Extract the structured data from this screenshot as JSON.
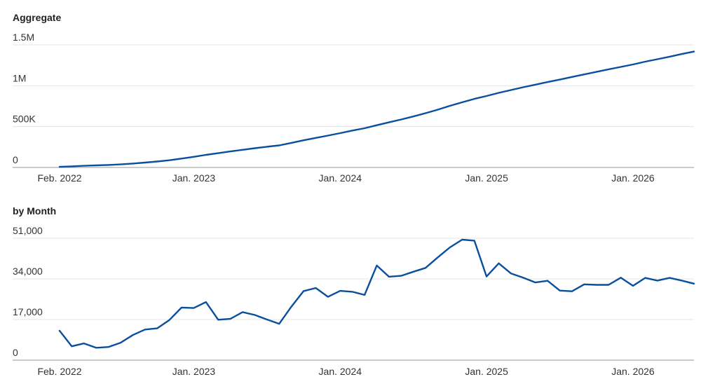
{
  "accent_color": "#0a4f9e",
  "chart_data": [
    {
      "type": "line",
      "title": "Aggregate",
      "x_start": "2022-02",
      "x_end": "2026-06",
      "xticks": [
        {
          "label": "Feb. 2022",
          "date": "2022-02"
        },
        {
          "label": "Jan. 2023",
          "date": "2023-01"
        },
        {
          "label": "Jan. 2024",
          "date": "2024-01"
        },
        {
          "label": "Jan. 2025",
          "date": "2025-01"
        },
        {
          "label": "Jan. 2026",
          "date": "2026-01"
        }
      ],
      "yticks": [
        {
          "label": "0",
          "value": 0
        },
        {
          "label": "500K",
          "value": 500000
        },
        {
          "label": "1M",
          "value": 1000000
        },
        {
          "label": "1.5M",
          "value": 1500000
        }
      ],
      "ylim": [
        0,
        1500000
      ],
      "grid": true,
      "series": [
        {
          "x": [
            "2022-02",
            "2022-03",
            "2022-04",
            "2022-05",
            "2022-06",
            "2022-07",
            "2022-08",
            "2022-09",
            "2022-10",
            "2022-11",
            "2022-12",
            "2023-01",
            "2023-02",
            "2023-03",
            "2023-04",
            "2023-05",
            "2023-06",
            "2023-07",
            "2023-08",
            "2023-09",
            "2023-10",
            "2023-11",
            "2023-12",
            "2024-01",
            "2024-02",
            "2024-03",
            "2024-04",
            "2024-05",
            "2024-06",
            "2024-07",
            "2024-08",
            "2024-09",
            "2024-10",
            "2024-11",
            "2024-12",
            "2025-01",
            "2025-02",
            "2025-03",
            "2025-04",
            "2025-05",
            "2025-06",
            "2025-07",
            "2025-08",
            "2025-09",
            "2025-10",
            "2025-11",
            "2025-12",
            "2026-01",
            "2026-02",
            "2026-03",
            "2026-04",
            "2026-05",
            "2026-06"
          ],
          "values": [
            8000,
            14000,
            21000,
            26000,
            31000,
            38000,
            48000,
            60000,
            73000,
            88000,
            109000,
            130000,
            154000,
            175000,
            196000,
            216000,
            236000,
            254000,
            270000,
            301000,
            333000,
            362000,
            390000,
            420000,
            452000,
            480000,
            517000,
            552000,
            587000,
            624000,
            664000,
            707000,
            754000,
            797000,
            839000,
            874000,
            913000,
            947000,
            981000,
            1013000,
            1045000,
            1075000,
            1107000,
            1138000,
            1169000,
            1201000,
            1230000,
            1260000,
            1294000,
            1324000,
            1355000,
            1388000,
            1418000
          ]
        }
      ]
    },
    {
      "type": "line",
      "title": "by Month",
      "x_start": "2022-02",
      "x_end": "2026-06",
      "xticks": [
        {
          "label": "Feb. 2022",
          "date": "2022-02"
        },
        {
          "label": "Jan. 2023",
          "date": "2023-01"
        },
        {
          "label": "Jan. 2024",
          "date": "2024-01"
        },
        {
          "label": "Jan. 2025",
          "date": "2025-01"
        },
        {
          "label": "Jan. 2026",
          "date": "2026-01"
        }
      ],
      "yticks": [
        {
          "label": "0",
          "value": 0
        },
        {
          "label": "17,000",
          "value": 17000
        },
        {
          "label": "34,000",
          "value": 34000
        },
        {
          "label": "51,000",
          "value": 51000
        }
      ],
      "ylim": [
        0,
        51000
      ],
      "grid": true,
      "series": [
        {
          "x": [
            "2022-02",
            "2022-03",
            "2022-04",
            "2022-05",
            "2022-06",
            "2022-07",
            "2022-08",
            "2022-09",
            "2022-10",
            "2022-11",
            "2022-12",
            "2023-01",
            "2023-02",
            "2023-03",
            "2023-04",
            "2023-05",
            "2023-06",
            "2023-07",
            "2023-08",
            "2023-09",
            "2023-10",
            "2023-11",
            "2023-12",
            "2024-01",
            "2024-02",
            "2024-03",
            "2024-04",
            "2024-05",
            "2024-06",
            "2024-07",
            "2024-08",
            "2024-09",
            "2024-10",
            "2024-11",
            "2024-12",
            "2025-01",
            "2025-02",
            "2025-03",
            "2025-04",
            "2025-05",
            "2025-06",
            "2025-07",
            "2025-08",
            "2025-09",
            "2025-10",
            "2025-11",
            "2025-12",
            "2026-01",
            "2026-02",
            "2026-03",
            "2026-04",
            "2026-05",
            "2026-06"
          ],
          "values": [
            12300,
            5800,
            7000,
            5200,
            5500,
            7300,
            10500,
            12800,
            13300,
            16800,
            22000,
            21800,
            24300,
            16900,
            17300,
            20100,
            18900,
            17000,
            15200,
            22400,
            28900,
            30200,
            26500,
            29000,
            28600,
            27300,
            39600,
            34900,
            35300,
            37000,
            38600,
            43000,
            47200,
            50400,
            50000,
            35000,
            40500,
            36300,
            34500,
            32500,
            33200,
            29100,
            28800,
            31700,
            31500,
            31500,
            34500,
            31100,
            34400,
            33300,
            34400,
            33300,
            32000
          ]
        }
      ]
    }
  ]
}
